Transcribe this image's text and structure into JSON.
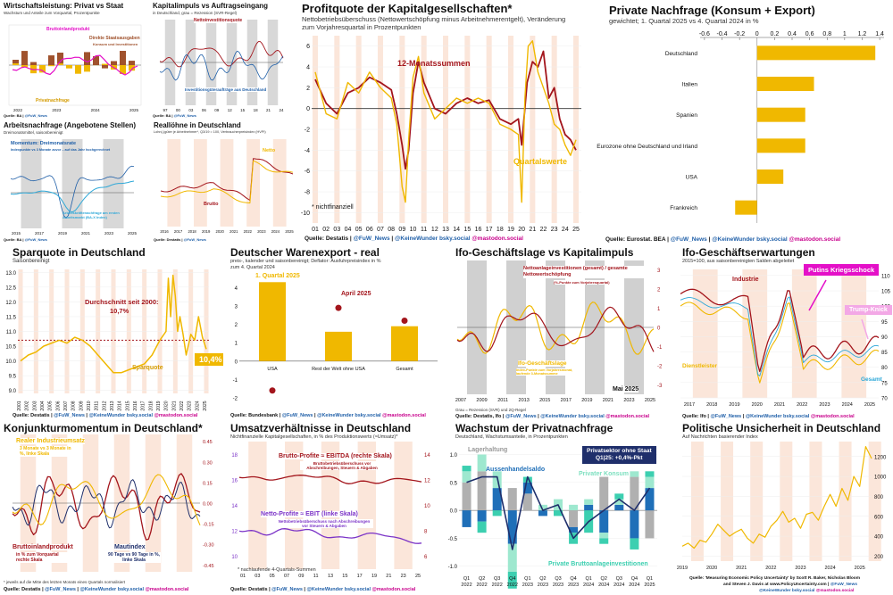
{
  "colors": {
    "dark_red": "#a3151c",
    "gold": "#f0b800",
    "light_blue": "#2ea8d8",
    "navy": "#1f2f6b",
    "purple": "#7b33c7",
    "magenta": "#e410c8",
    "recession": "#fbe6da",
    "grey": "#b0b0b0"
  },
  "source_handles": {
    "fuw": "@FuW_News",
    "kw": "@KeineWunder bsky.social",
    "mastodon": "@mastodon.social"
  },
  "p1": {
    "title": "Wirtschaftsleistung: Privat vs Staat",
    "subtitle": "Wachstum und Anteile zum Vorquartal, Prozentpunkte",
    "label_bip": "Bruttoinlandprodukt",
    "label_staat": "Direkte Staatsausgaben",
    "label_staat2": "Konsum und Investitionen",
    "label_privat": "Privatnachfrage",
    "source": "Quelle: BA",
    "chart_data": {
      "type": "bar",
      "x_ticks": [
        "2022",
        "2023",
        "2024",
        "2025"
      ]
    }
  },
  "p2": {
    "title": "Kapitalimpuls vs Auftragseingang",
    "subtitle": "in Deutschland, grau = Rezession (SVR-Regel)",
    "label_netto": "Nettoinvestitionsquote",
    "label_auftrag": "Investitionsgüteraufträge aus Deutschland",
    "source": "Quelle: BA",
    "chart_data": {
      "type": "line",
      "x_ticks": [
        "97",
        "00",
        "03",
        "06",
        "09",
        "12",
        "15",
        "18",
        "21",
        "24"
      ]
    }
  },
  "p3": {
    "title": "Arbeitsnachfrage (Angebotene Stellen)",
    "subtitle": "Dreimonatsmittel, saisonbereinigt",
    "label_momentum": "Momentum: Dreimonatsrate",
    "label_momentum2": "Indexpunkte vs 3 Monate zuvor – auf das Jahr hochgerechnet",
    "label_arbeits": "Arbeitskräftenachfrage am ersten Arbeitsmarkt (BA-X Index)",
    "source": "Quelle: BA",
    "chart_data": {
      "type": "line",
      "x_ticks": [
        "2015",
        "2017",
        "2019",
        "2021",
        "2023",
        "2025"
      ]
    }
  },
  "p4": {
    "title": "Reallöhne in Deutschland",
    "subtitle": "Lohn(-)güter je Arbeitnehmer*, Q3/19 = 100, Verbraucherpreisindex (HVPI)",
    "label_netto": "Netto",
    "label_brutto": "Brutto",
    "source": "Quelle: Destatis",
    "chart_data": {
      "type": "line",
      "x_ticks": [
        "2016",
        "2017",
        "2018",
        "2019",
        "2020",
        "2021",
        "2022",
        "2023",
        "2024",
        "2025"
      ]
    }
  },
  "p5": {
    "title": "Profitquote der Kapitalgesellschaften*",
    "subtitle": "Nettobetriebsüberschuss (Nettowertschöpfung minus Arbeitnehmerentgelt), Veränderung zum Vorjahresquartal in Prozentpunkten",
    "label_12m": "12-Monatssummen",
    "label_q": "Quartalswerte",
    "footnote": "* nichtfinanziell",
    "source_prefix": "Quelle: Destatis |",
    "chart_data": {
      "type": "line",
      "x_ticks": [
        "01",
        "02",
        "03",
        "04",
        "05",
        "06",
        "07",
        "08",
        "09",
        "10",
        "11",
        "12",
        "13",
        "14",
        "15",
        "16",
        "17",
        "18",
        "19",
        "20",
        "21",
        "22",
        "23",
        "24",
        "25"
      ],
      "y_ticks": [
        6,
        4,
        2,
        0,
        -2,
        -4,
        -6,
        -8,
        -10
      ],
      "ylim": [
        -11,
        7
      ],
      "series": [
        {
          "name": "12-Monatssummen",
          "x": [
            2001,
            2002,
            2003,
            2004,
            2005,
            2006,
            2007,
            2008,
            2008.5,
            2009,
            2009.3,
            2009.6,
            2010,
            2010.5,
            2011,
            2012,
            2013,
            2014,
            2015,
            2016,
            2017,
            2018,
            2019,
            2019.7,
            2020,
            2020.5,
            2021,
            2021.5,
            2022,
            2022.5,
            2023,
            2023.5,
            2024,
            2024.5,
            2025
          ],
          "values": [
            2.8,
            0.5,
            -0.5,
            1.5,
            2.0,
            3.0,
            2.5,
            1.8,
            -0.5,
            -3.5,
            -5.8,
            -4.0,
            1.5,
            4.5,
            2.5,
            0.0,
            -0.5,
            0.5,
            1.0,
            0.5,
            0.8,
            -1.0,
            -1.5,
            -1.0,
            -3.5,
            2.5,
            4.5,
            4.0,
            5.5,
            1.0,
            2.0,
            -1.0,
            -2.5,
            -3.0,
            -4.0
          ]
        },
        {
          "name": "Quartalswerte",
          "x": [
            2001,
            2002,
            2003,
            2004,
            2005,
            2006,
            2007,
            2008,
            2008.5,
            2009,
            2009.3,
            2009.6,
            2010,
            2010.5,
            2011,
            2012,
            2013,
            2014,
            2015,
            2016,
            2017,
            2018,
            2019,
            2019.7,
            2020,
            2020.3,
            2020.6,
            2021,
            2021.5,
            2022,
            2022.5,
            2023,
            2023.5,
            2024,
            2024.5,
            2025
          ],
          "values": [
            3.5,
            -0.5,
            -1.0,
            2.5,
            1.5,
            3.5,
            2.0,
            1.0,
            -1.5,
            -7.5,
            -9.0,
            -3.0,
            3.0,
            5.0,
            1.5,
            -1.0,
            0.0,
            1.0,
            0.5,
            1.0,
            0.5,
            -1.5,
            -2.0,
            -2.5,
            -9.0,
            1.0,
            6.0,
            6.5,
            3.5,
            2.0,
            0.5,
            -1.5,
            -2.0,
            -3.5,
            -4.5,
            -3.0
          ]
        }
      ]
    }
  },
  "p6": {
    "title": "Private Nachfrage (Konsum + Export)",
    "subtitle": "gewichtet; 1. Quartal 2025 vs 4. Quartal 2024 in %",
    "source_prefix": "Quelle: Eurostat. BEA |",
    "chart_data": {
      "type": "bar",
      "categories": [
        "Deutschland",
        "Italien",
        "Spanien",
        "Eurozone ohne Deutschland und Irland",
        "USA",
        "Frankreich"
      ],
      "values": [
        1.35,
        0.65,
        0.55,
        0.55,
        0.3,
        -0.25
      ],
      "x_ticks": [
        -0.6,
        -0.4,
        -0.2,
        0,
        0.2,
        0.4,
        0.6,
        0.8,
        1,
        1.2,
        1.4
      ],
      "xlim": [
        -0.65,
        1.45
      ]
    }
  },
  "p7": {
    "title": "Sparquote in Deutschland",
    "subtitle": "Saisonbereinigt",
    "label_avg": "Durchschnitt seit 2000:",
    "label_avg_value": "10,7%",
    "label_series": "Sparquote",
    "label_last": "10,4%",
    "source_prefix": "Quelle: Destatis |",
    "chart_data": {
      "type": "line",
      "x_ticks": [
        "2001",
        "2002",
        "2003",
        "2004",
        "2005",
        "2006",
        "2007",
        "2008",
        "2009",
        "2010",
        "2011",
        "2012",
        "2013",
        "2014",
        "2015",
        "2016",
        "2017",
        "2018",
        "2019",
        "2020",
        "2021",
        "2022",
        "2023",
        "2024",
        "2025"
      ],
      "y_ticks": [
        13.0,
        12.5,
        12.0,
        11.5,
        11.0,
        10.5,
        10.0,
        9.5,
        9.0
      ],
      "ylim": [
        8.9,
        13.1
      ],
      "average": 10.7,
      "series": [
        {
          "name": "Sparquote",
          "x": [
            2001,
            2002,
            2003,
            2004,
            2005,
            2006,
            2007,
            2008,
            2009,
            2010,
            2011,
            2012,
            2013,
            2014,
            2015,
            2016,
            2017,
            2018,
            2019,
            2019.8,
            2020.1,
            2020.4,
            2020.7,
            2021,
            2021.3,
            2021.6,
            2022,
            2022.4,
            2023,
            2023.5,
            2024,
            2024.5,
            2025
          ],
          "values": [
            10.0,
            10.2,
            10.3,
            10.5,
            10.6,
            10.7,
            10.6,
            10.8,
            10.7,
            10.5,
            10.2,
            9.9,
            9.6,
            9.6,
            9.7,
            9.8,
            9.9,
            10.2,
            10.7,
            11.0,
            12.8,
            11.5,
            12.9,
            12.2,
            11.0,
            11.5,
            10.9,
            10.2,
            10.9,
            10.7,
            11.5,
            10.8,
            10.4
          ]
        }
      ]
    }
  },
  "p8": {
    "title": "Deutscher Warenexport - real",
    "subtitle": "preis-, kalender und saisonbereinigt; Deflator: Ausfuhrpreisindex in % zum 4. Quartal 2024",
    "label_q1": "1. Quartal 2025",
    "label_april": "April 2025",
    "source_prefix": "Quelle: Bundesbank |",
    "chart_data": {
      "type": "bar",
      "categories": [
        "USA",
        "Rest der Welt ohne USA",
        "Gesamt"
      ],
      "series": [
        {
          "name": "1. Quartal 2025",
          "values": [
            4.3,
            1.6,
            1.9
          ]
        },
        {
          "name": "April 2025",
          "values": [
            -1.6,
            2.9,
            2.2
          ]
        }
      ],
      "y_ticks": [
        4,
        3,
        2,
        1,
        0,
        -1,
        -2
      ],
      "ylim": [
        -2,
        4.8
      ]
    }
  },
  "p9": {
    "title": "Ifo-Geschäftslage vs Kapitalimpuls",
    "label_netto": "Nettoanlageinvestitionen (gesamt) / gesamte Nettowertschöpfung",
    "label_netto2": "(%-Punkte zum Vorjahresquartal)",
    "label_ifo": "Ifo-Geschäftslage",
    "label_ifo2": "Index-Punkte zum Vorjahresmonat, laufende 3-Monatssumme",
    "label_date": "Mai 2025",
    "footnote": "Grau = Rezession (SVR) und 2Q-Regel",
    "source_prefix": "Quelle: Destatis, Ifo |",
    "chart_data": {
      "type": "line",
      "x_ticks": [
        "2007",
        "2009",
        "2011",
        "2013",
        "2015",
        "2017",
        "2019",
        "2021",
        "2023",
        "2025"
      ],
      "y_ticks": [
        3,
        2,
        1,
        0,
        -1,
        -2,
        -3
      ]
    }
  },
  "p10": {
    "title": "Ifo-Geschäftserwartungen",
    "subtitle": "2015=100, aus saisonbereinigten Salden abgeleitet",
    "label_industrie": "Industrie",
    "label_dienst": "Dienstleister",
    "label_gesamt": "Gesamt",
    "label_putin": "Putins Kriegsschock",
    "label_trump": "Trump-Knick",
    "source_prefix": "Quelle: Ifo |",
    "chart_data": {
      "type": "line",
      "x_ticks": [
        "2017",
        "2018",
        "2019",
        "2020",
        "2021",
        "2022",
        "2023",
        "2024",
        "2025"
      ],
      "y_ticks": [
        110,
        105,
        100,
        95,
        90,
        85,
        80,
        75,
        70
      ]
    }
  },
  "p11": {
    "title": "Konjunkturmomentum in Deutschland*",
    "label_industrie": "Realer Industrieumsatz",
    "label_industrie2": "3 Monate vs 3 Monate in %, linke Skala",
    "label_bip": "Bruttoinlandprodukt",
    "label_bip2": "in % zum Vorquartal rechte Skala",
    "label_maut": "Mautindex",
    "label_maut2": "90 Tage vs 90 Tage in %, linke Skala",
    "footnote": "* jeweils auf die Mitte des letzten Monats eines Quartals normalisiert",
    "source_prefix": "Quelle: Destatis |",
    "chart_data": {
      "type": "line",
      "y_ticks": [
        0.45,
        0.3,
        0.15,
        0.0,
        -0.15,
        -0.3,
        -0.45
      ]
    }
  },
  "p12": {
    "title": "Umsatzverhältnisse in Deutschland",
    "subtitle": "Nichtfinanzielle Kapitalgesellschaften, in % des Produktionswerts (≈Umsatz)*",
    "label_brutto": "Brutto-Profite ≈ EBITDA  (rechte Skala)",
    "label_brutto2": "Bruttobetriebsüberschuss vor Abschreibungen, Steuern & Abgaben",
    "label_netto": "Netto-Profite ≈ EBIT (linke Skala)",
    "label_netto2": "Nettobetriebsüberschuss nach Abschreibungen vor Steuern & Abgaben",
    "footnote": "* nachlaufende 4-Quartals-Summen",
    "source_prefix": "Quelle: Destatis |",
    "chart_data": {
      "type": "line",
      "x_ticks": [
        "01",
        "03",
        "05",
        "07",
        "09",
        "11",
        "13",
        "15",
        "17",
        "19",
        "21",
        "23",
        "25"
      ],
      "y_ticks": [
        18,
        16,
        14,
        12,
        10
      ],
      "y2_ticks": [
        14,
        12,
        10,
        8,
        6
      ]
    }
  },
  "p13": {
    "title": "Wachstum der Privatnachfrage",
    "subtitle": "Deutschland, Wachstumsanteile, in Prozentpunkten",
    "label_lager": "Lagerhaltung",
    "label_aussen": "Aussenhandelsaldo",
    "label_konsum": "Privater Konsum",
    "label_invest": "Private Bruttoanlageinvestitionen",
    "box_line1": "Privatsektor ohne Staat",
    "box_line2": "Q1|25: +0,4%-Pkt",
    "chart_data": {
      "type": "bar",
      "categories": [
        "Q1 2022",
        "Q2 2022",
        "Q3 2022",
        "Q4 2022",
        "Q1 2023",
        "Q2 2023",
        "Q3 2023",
        "Q4 2023",
        "Q1 2024",
        "Q2 2024",
        "Q3 2024",
        "Q4 2024",
        "Q1 2025"
      ],
      "y_ticks": [
        1.0,
        0.5,
        0.0,
        -0.5,
        -1.0
      ],
      "ylim": [
        -1.1,
        1.2
      ],
      "series": [
        {
          "name": "Lagerhaltung",
          "values": [
            0.5,
            0.7,
            0.0,
            0.4,
            0.3,
            0.0,
            0.0,
            -0.3,
            0.0,
            0.6,
            0.0,
            0.6,
            -0.5
          ]
        },
        {
          "name": "Aussenhandelsaldo",
          "values": [
            -0.3,
            -0.2,
            0.4,
            -0.6,
            0.2,
            -0.1,
            0.0,
            -0.1,
            0.1,
            -0.4,
            0.1,
            -0.5,
            0.4
          ]
        },
        {
          "name": "Privater Konsum",
          "values": [
            0.2,
            0.3,
            0.3,
            -0.5,
            0.0,
            0.1,
            0.2,
            0.1,
            0.1,
            -0.1,
            0.1,
            0.1,
            0.2
          ]
        },
        {
          "name": "Private Bruttoanlageinvestitionen",
          "values": [
            0.1,
            -0.2,
            -0.1,
            -0.3,
            0.1,
            0.0,
            -0.1,
            -0.2,
            -0.4,
            -0.1,
            0.1,
            -0.2,
            0.1
          ]
        }
      ],
      "line": [
        0.5,
        0.6,
        0.6,
        -0.7,
        0.6,
        0.0,
        0.1,
        -0.5,
        -0.2,
        0.0,
        0.2,
        0.0,
        0.4
      ]
    }
  },
  "p14": {
    "title": "Politische Unsicherheit in Deutschland",
    "subtitle": "Auf Nachrichten basierender Index",
    "source_line1": "Quelle: 'Measuring Economic Policy Uncertainty' by Scott R. Baker, Nicholas Bloom",
    "source_line2": "and Steven J. Davis at www.PolicyUncertainty.com",
    "chart_data": {
      "type": "line",
      "x_ticks": [
        "2019",
        "2020",
        "2021",
        "2022",
        "2023",
        "2024",
        "2025"
      ],
      "y_ticks": [
        1200,
        1000,
        800,
        600,
        400,
        200
      ],
      "ylim": [
        150,
        1350
      ],
      "series": [
        {
          "name": "",
          "x": [
            2019,
            2019.2,
            2019.4,
            2019.6,
            2019.8,
            2020,
            2020.2,
            2020.4,
            2020.6,
            2020.8,
            2021,
            2021.2,
            2021.4,
            2021.6,
            2021.8,
            2022,
            2022.2,
            2022.4,
            2022.6,
            2022.8,
            2023,
            2023.2,
            2023.4,
            2023.6,
            2023.8,
            2024,
            2024.2,
            2024.4,
            2024.6,
            2024.8,
            2025,
            2025.2,
            2025.4
          ],
          "values": [
            300,
            330,
            280,
            360,
            340,
            420,
            520,
            460,
            400,
            440,
            470,
            380,
            330,
            420,
            390,
            500,
            560,
            650,
            540,
            580,
            480,
            620,
            640,
            560,
            700,
            820,
            700,
            880,
            760,
            1000,
            900,
            1300,
            1180
          ]
        }
      ]
    }
  }
}
